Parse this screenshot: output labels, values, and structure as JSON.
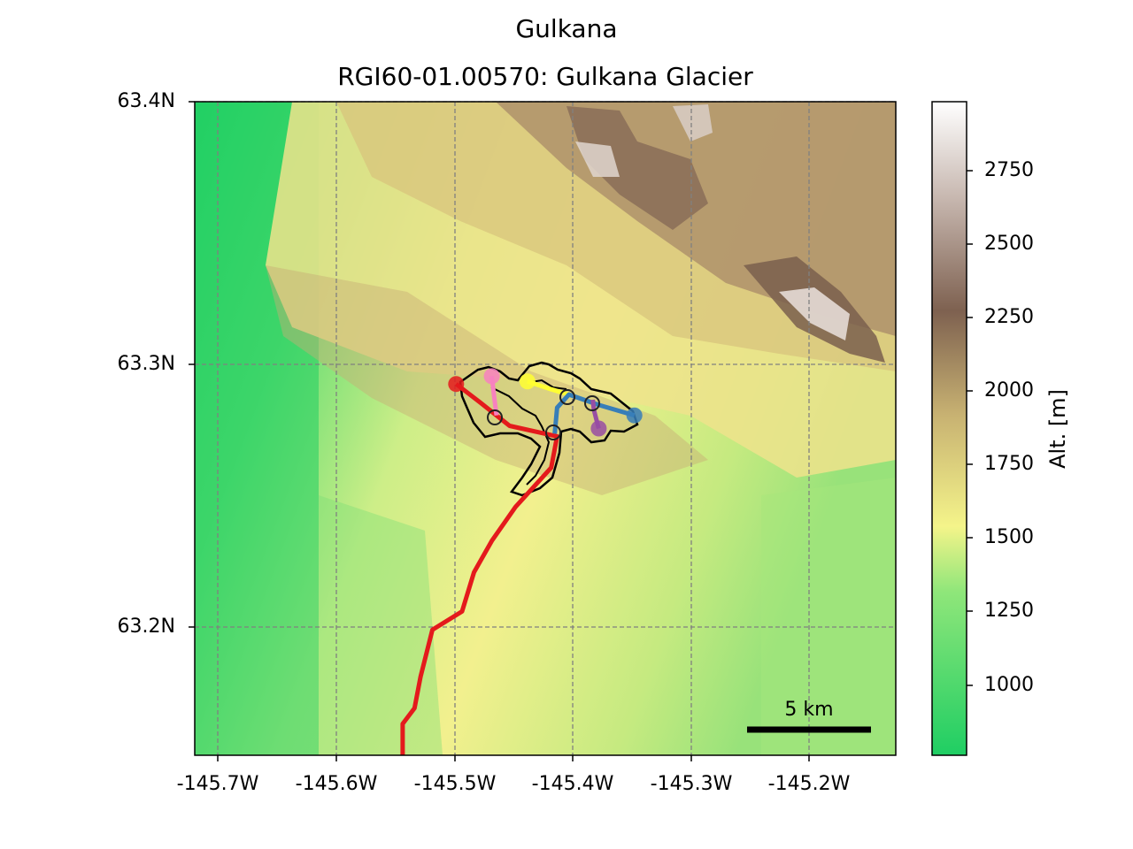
{
  "figure": {
    "title": "Gulkana",
    "subtitle": "RGI60-01.00570: Gulkana Glacier"
  },
  "map": {
    "lat_ticks": [
      "63.4N",
      "63.3N",
      "63.2N"
    ],
    "lon_ticks": [
      "-145.7W",
      "-145.6W",
      "-145.5W",
      "-145.4W",
      "-145.3W",
      "-145.2W"
    ],
    "scale_bar_label": "5 km",
    "grid": "dashed gray"
  },
  "colorbar": {
    "label": "Alt. [m]",
    "ticks": [
      "2750",
      "2500",
      "2250",
      "2000",
      "1750",
      "1500",
      "1250",
      "1000"
    ],
    "colors": [
      "#1fce63",
      "#8fe67a",
      "#f4f48a",
      "#c8b272",
      "#7e6150",
      "#ffffff"
    ]
  },
  "chart_data": {
    "type": "map",
    "title": "Gulkana",
    "subtitle": "RGI60-01.00570: Gulkana Glacier",
    "lon_range": [
      -145.72,
      -145.13
    ],
    "lat_range": [
      63.15,
      63.4
    ],
    "elevation_range_m": [
      750,
      2960
    ],
    "flowlines": [
      {
        "color": "#e41a1c",
        "points": [
          [
            -145.5,
            63.292
          ],
          [
            -145.48,
            63.285
          ],
          [
            -145.455,
            63.276
          ],
          [
            -145.415,
            63.272
          ],
          [
            -145.42,
            63.26
          ],
          [
            -145.45,
            63.245
          ],
          [
            -145.47,
            63.232
          ],
          [
            -145.485,
            63.22
          ],
          [
            -145.495,
            63.205
          ],
          [
            -145.52,
            63.198
          ],
          [
            -145.53,
            63.18
          ],
          [
            -145.535,
            63.168
          ],
          [
            -145.545,
            63.162
          ],
          [
            -145.545,
            63.15
          ]
        ]
      },
      {
        "color": "#f781bf",
        "points": [
          [
            -145.47,
            63.295
          ],
          [
            -145.468,
            63.287
          ],
          [
            -145.466,
            63.28
          ]
        ]
      },
      {
        "color": "#ffff33",
        "points": [
          [
            -145.44,
            63.293
          ],
          [
            -145.42,
            63.29
          ],
          [
            -145.405,
            63.288
          ]
        ]
      },
      {
        "color": "#377eb8",
        "points": [
          [
            -145.35,
            63.28
          ],
          [
            -145.38,
            63.284
          ],
          [
            -145.405,
            63.288
          ],
          [
            -145.415,
            63.283
          ],
          [
            -145.417,
            63.273
          ]
        ]
      },
      {
        "color": "#984ea3",
        "points": [
          [
            -145.38,
            63.275
          ],
          [
            -145.384,
            63.282
          ],
          [
            -145.385,
            63.286
          ]
        ]
      }
    ]
  }
}
